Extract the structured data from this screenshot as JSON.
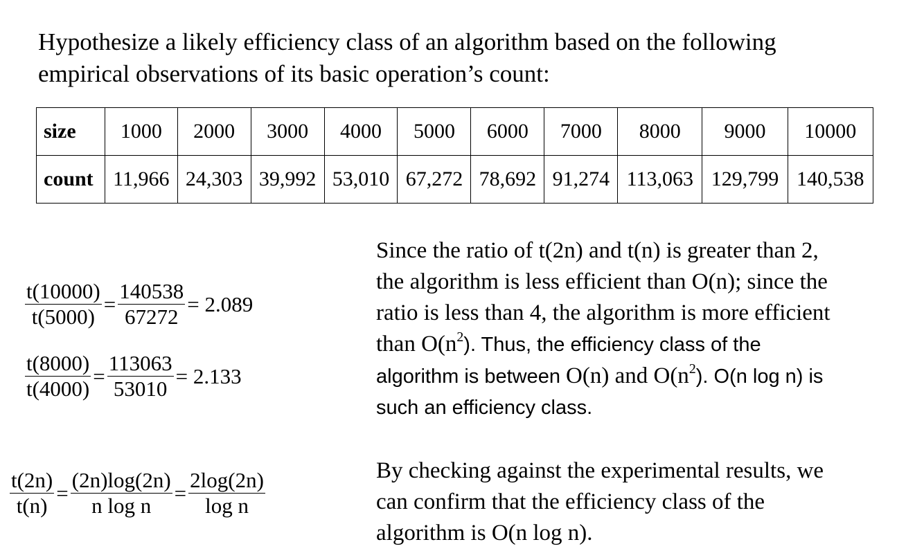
{
  "intro": {
    "line1": "Hypothesize a likely efficiency class of an algorithm based on the following",
    "line2": "empirical observations of its basic operation’s count:"
  },
  "table": {
    "size_label": "size",
    "count_label": "count",
    "sizes": [
      "1000",
      "2000",
      "3000",
      "4000",
      "5000",
      "6000",
      "7000",
      "8000",
      "9000",
      "10000"
    ],
    "counts": [
      "11,966",
      "24,303",
      "39,992",
      "53,010",
      "67,272",
      "78,692",
      "91,274",
      "113,063",
      "129,799",
      "140,538"
    ]
  },
  "eq1": {
    "lhs_num": "t(10000)",
    "lhs_den": "t(5000)",
    "mid_num": "140538",
    "mid_den": "67272",
    "result": "= 2.089"
  },
  "eq2": {
    "lhs_num": "t(8000)",
    "lhs_den": "t(4000)",
    "mid_num": "113063",
    "mid_den": "53010",
    "result": "= 2.133"
  },
  "eq3": {
    "a_num": "t(2n)",
    "a_den": "t(n)",
    "b_num": "(2n)log(2n)",
    "b_den": "n log n",
    "c_num": "2log(2n)",
    "c_den": "log n"
  },
  "para1": {
    "s1": "Since the ratio of  t(2n) and t(n) is greater than 2,",
    "s2": "the algorithm is less efficient than O(n); since the",
    "s3": "ratio is less than 4, the algorithm is more efficient",
    "s4a": "than O(n",
    "s4b": "). Thus, the efficiency class of the",
    "s5a": "algorithm is between ",
    "s5b": "O(n) and O(n",
    "s5c": "). O(n log n) is",
    "s6": "such an efficiency class.",
    "sup": "2"
  },
  "para2": {
    "line1": "By checking against the experimental results, we",
    "line2": "can confirm that the efficiency class of the",
    "line3": "algorithm is O(n log n)."
  }
}
